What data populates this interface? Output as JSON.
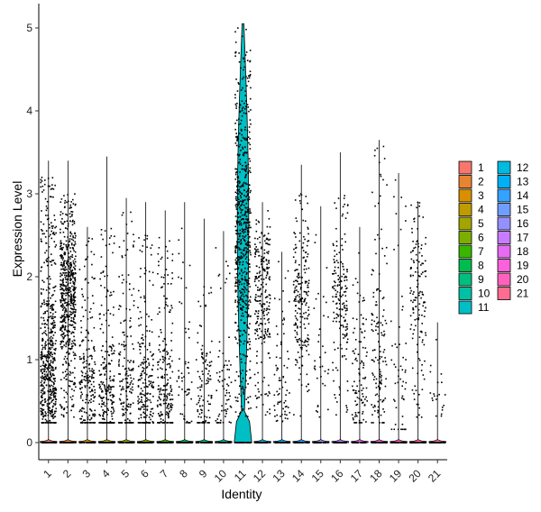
{
  "chart_data": {
    "type": "violin",
    "xlabel": "Identity",
    "ylabel": "Expression Level",
    "categories": [
      "1",
      "2",
      "3",
      "4",
      "5",
      "6",
      "7",
      "8",
      "9",
      "10",
      "11",
      "12",
      "13",
      "14",
      "15",
      "16",
      "17",
      "18",
      "19",
      "20",
      "21"
    ],
    "y_ticks": [
      0,
      1,
      2,
      3,
      4,
      5
    ],
    "ylim": [
      -0.2,
      5.05
    ],
    "point_color": "#000000",
    "series": [
      {
        "name": "1",
        "color": "#F8766D",
        "max": 3.4,
        "pct_expressed": 0.8,
        "band": [
          0.3,
          3.2
        ],
        "mode": 0.8
      },
      {
        "name": "2",
        "color": "#EA8331",
        "max": 3.4,
        "pct_expressed": 0.85,
        "band": [
          0.3,
          3.0
        ],
        "mode": 1.8
      },
      {
        "name": "3",
        "color": "#D89000",
        "max": 2.6,
        "pct_expressed": 0.3,
        "band": [
          0.3,
          2.5
        ],
        "mode": 0.6
      },
      {
        "name": "4",
        "color": "#C09B00",
        "max": 3.45,
        "pct_expressed": 0.35,
        "band": [
          0.3,
          2.6
        ],
        "mode": 0.5
      },
      {
        "name": "5",
        "color": "#A3A500",
        "max": 2.95,
        "pct_expressed": 0.25,
        "band": [
          0.3,
          2.8
        ],
        "mode": 0.5
      },
      {
        "name": "6",
        "color": "#7CAE00",
        "max": 2.9,
        "pct_expressed": 0.3,
        "band": [
          0.3,
          2.5
        ],
        "mode": 0.5
      },
      {
        "name": "7",
        "color": "#39B600",
        "max": 2.8,
        "pct_expressed": 0.3,
        "band": [
          0.3,
          2.5
        ],
        "mode": 0.5
      },
      {
        "name": "8",
        "color": "#00BB4E",
        "max": 2.9,
        "pct_expressed": 0.08,
        "band": [
          0.3,
          2.6
        ],
        "mode": 0.5
      },
      {
        "name": "9",
        "color": "#00BF7D",
        "max": 2.7,
        "pct_expressed": 0.15,
        "band": [
          0.3,
          2.3
        ],
        "mode": 0.6
      },
      {
        "name": "10",
        "color": "#00C1A3",
        "max": 2.55,
        "pct_expressed": 0.1,
        "band": [
          0.3,
          2.4
        ],
        "mode": 0.6
      },
      {
        "name": "11",
        "color": "#00BFC4",
        "max": 5.05,
        "pct_expressed": 0.95,
        "band": [
          0.3,
          5.0
        ],
        "mode": 2.5
      },
      {
        "name": "12",
        "color": "#00BAE0",
        "max": 2.9,
        "pct_expressed": 0.35,
        "band": [
          0.3,
          2.7
        ],
        "mode": 1.9
      },
      {
        "name": "13",
        "color": "#00B0F6",
        "max": 2.3,
        "pct_expressed": 0.1,
        "band": [
          0.3,
          2.2
        ],
        "mode": 0.6
      },
      {
        "name": "14",
        "color": "#35A2FF",
        "max": 3.35,
        "pct_expressed": 0.3,
        "band": [
          0.3,
          3.0
        ],
        "mode": 1.8
      },
      {
        "name": "15",
        "color": "#9590FF",
        "max": 2.85,
        "pct_expressed": 0.05,
        "band": [
          0.3,
          2.6
        ],
        "mode": 1.0
      },
      {
        "name": "16",
        "color": "#C77CFF",
        "max": 3.5,
        "pct_expressed": 0.25,
        "band": [
          0.3,
          3.0
        ],
        "mode": 1.8
      },
      {
        "name": "17",
        "color": "#E76BF3",
        "max": 2.6,
        "pct_expressed": 0.15,
        "band": [
          0.3,
          2.5
        ],
        "mode": 0.8
      },
      {
        "name": "18",
        "color": "#FA62DB",
        "max": 3.65,
        "pct_expressed": 0.2,
        "band": [
          0.3,
          3.6
        ],
        "mode": 0.8
      },
      {
        "name": "19",
        "color": "#FF62BC",
        "max": 3.25,
        "pct_expressed": 0.08,
        "band": [
          0.2,
          3.2
        ],
        "mode": 0.4
      },
      {
        "name": "20",
        "color": "#FF6C91",
        "max": 2.9,
        "pct_expressed": 0.2,
        "band": [
          0.3,
          2.9
        ],
        "mode": 1.8
      },
      {
        "name": "21",
        "color": "#FF6C91",
        "max": 1.45,
        "pct_expressed": 0.03,
        "band": [
          0.4,
          1.45
        ],
        "mode": 0.5
      }
    ],
    "legend": {
      "placement": "right",
      "columns": 2,
      "entries": [
        {
          "label": "1",
          "color": "#F8766D"
        },
        {
          "label": "2",
          "color": "#EA8331"
        },
        {
          "label": "3",
          "color": "#D89000"
        },
        {
          "label": "4",
          "color": "#C09B00"
        },
        {
          "label": "5",
          "color": "#A3A500"
        },
        {
          "label": "6",
          "color": "#7CAE00"
        },
        {
          "label": "7",
          "color": "#39B600"
        },
        {
          "label": "8",
          "color": "#00BB4E"
        },
        {
          "label": "9",
          "color": "#00BF7D"
        },
        {
          "label": "10",
          "color": "#00C1A3"
        },
        {
          "label": "11",
          "color": "#00BFC4"
        },
        {
          "label": "12",
          "color": "#00BAE0"
        },
        {
          "label": "13",
          "color": "#00B0F6"
        },
        {
          "label": "14",
          "color": "#35A2FF"
        },
        {
          "label": "15",
          "color": "#6F9EFF"
        },
        {
          "label": "16",
          "color": "#9590FF"
        },
        {
          "label": "17",
          "color": "#C77CFF"
        },
        {
          "label": "18",
          "color": "#E76BF3"
        },
        {
          "label": "19",
          "color": "#FA62DB"
        },
        {
          "label": "20",
          "color": "#FF62BC"
        },
        {
          "label": "21",
          "color": "#FF6C91"
        }
      ]
    },
    "grid": false
  }
}
